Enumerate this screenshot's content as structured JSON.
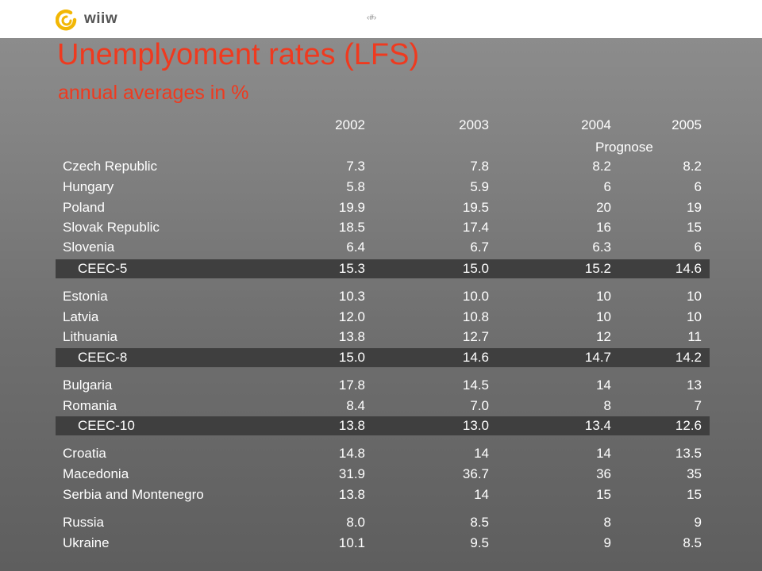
{
  "header": {
    "logo_text": "wiiw",
    "slide_number": "‹#›"
  },
  "title": "Unemplyoment rates (LFS)",
  "subtitle": "annual averages  in %",
  "table": {
    "columns": [
      "2002",
      "2003",
      "2004",
      "2005"
    ],
    "column_note": "Prognose",
    "rows": [
      {
        "label": "Czech Republic",
        "values": [
          "7.3",
          "7.8",
          "8.2",
          "8.2"
        ]
      },
      {
        "label": "Hungary",
        "values": [
          "5.8",
          "5.9",
          "6",
          "6"
        ]
      },
      {
        "label": "Poland",
        "values": [
          "19.9",
          "19.5",
          "20",
          "19"
        ]
      },
      {
        "label": "Slovak Republic",
        "values": [
          "18.5",
          "17.4",
          "16",
          "15"
        ]
      },
      {
        "label": "Slovenia",
        "values": [
          "6.4",
          "6.7",
          "6.3",
          "6"
        ]
      },
      {
        "label": "CEEC-5",
        "values": [
          "15.3",
          "15.0",
          "15.2",
          "14.6"
        ]
      },
      {
        "label": "Estonia",
        "values": [
          "10.3",
          "10.0",
          "10",
          "10"
        ]
      },
      {
        "label": "Latvia",
        "values": [
          "12.0",
          "10.8",
          "10",
          "10"
        ]
      },
      {
        "label": "Lithuania",
        "values": [
          "13.8",
          "12.7",
          "12",
          "11"
        ]
      },
      {
        "label": "CEEC-8",
        "values": [
          "15.0",
          "14.6",
          "14.7",
          "14.2"
        ]
      },
      {
        "label": "Bulgaria",
        "values": [
          "17.8",
          "14.5",
          "14",
          "13"
        ]
      },
      {
        "label": "Romania",
        "values": [
          "8.4",
          "7.0",
          "8",
          "7"
        ]
      },
      {
        "label": "CEEC-10",
        "values": [
          "13.8",
          "13.0",
          "13.4",
          "12.6"
        ]
      },
      {
        "label": "Croatia",
        "values": [
          "14.8",
          "14",
          "14",
          "13.5"
        ]
      },
      {
        "label": "Macedonia",
        "values": [
          "31.9",
          "36.7",
          "36",
          "35"
        ]
      },
      {
        "label": "Serbia and  Montenegro",
        "values": [
          "13.8",
          "14",
          "15",
          "15"
        ]
      },
      {
        "label": "Russia",
        "values": [
          "8.0",
          "8.5",
          "8",
          "9"
        ]
      },
      {
        "label": "Ukraine",
        "values": [
          "10.1",
          "9.5",
          "9",
          "8.5"
        ]
      }
    ]
  }
}
